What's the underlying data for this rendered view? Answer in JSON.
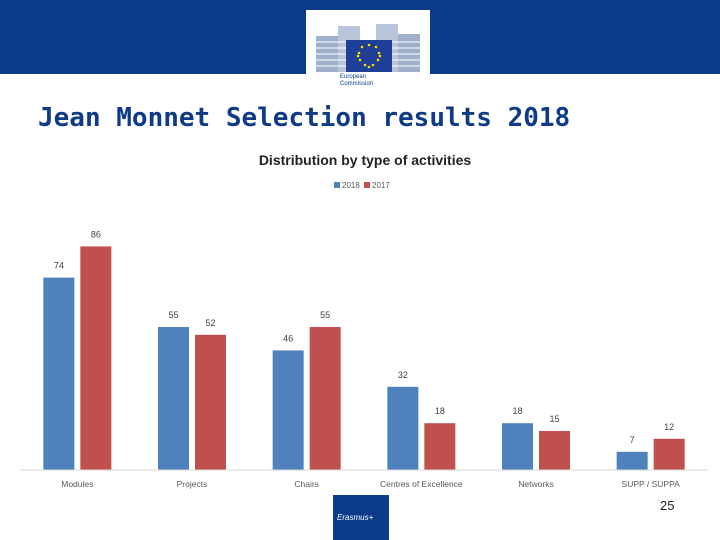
{
  "header": {
    "org_name_line1": "European",
    "org_name_line2": "Commission",
    "bar_color": "#0d3b8c"
  },
  "slide_title": "Jean Monnet Selection results 2018",
  "chart_data": {
    "type": "bar",
    "title": "Distribution by type of activities",
    "categories": [
      "Modules",
      "Projects",
      "Chairs",
      "Centres of Excellence",
      "Networks",
      "SUPP / SUPPA"
    ],
    "series": [
      {
        "name": "2018",
        "values": [
          74,
          55,
          46,
          32,
          18,
          7
        ],
        "color": "#4f81bd"
      },
      {
        "name": "2017",
        "values": [
          86,
          52,
          55,
          18,
          15,
          12
        ],
        "color": "#c0504d"
      }
    ],
    "ylim": [
      0,
      100
    ],
    "grid": false,
    "legend": "top-center",
    "data_labels": true
  },
  "footer": {
    "programme": "Erasmus+",
    "page_number": "25"
  }
}
